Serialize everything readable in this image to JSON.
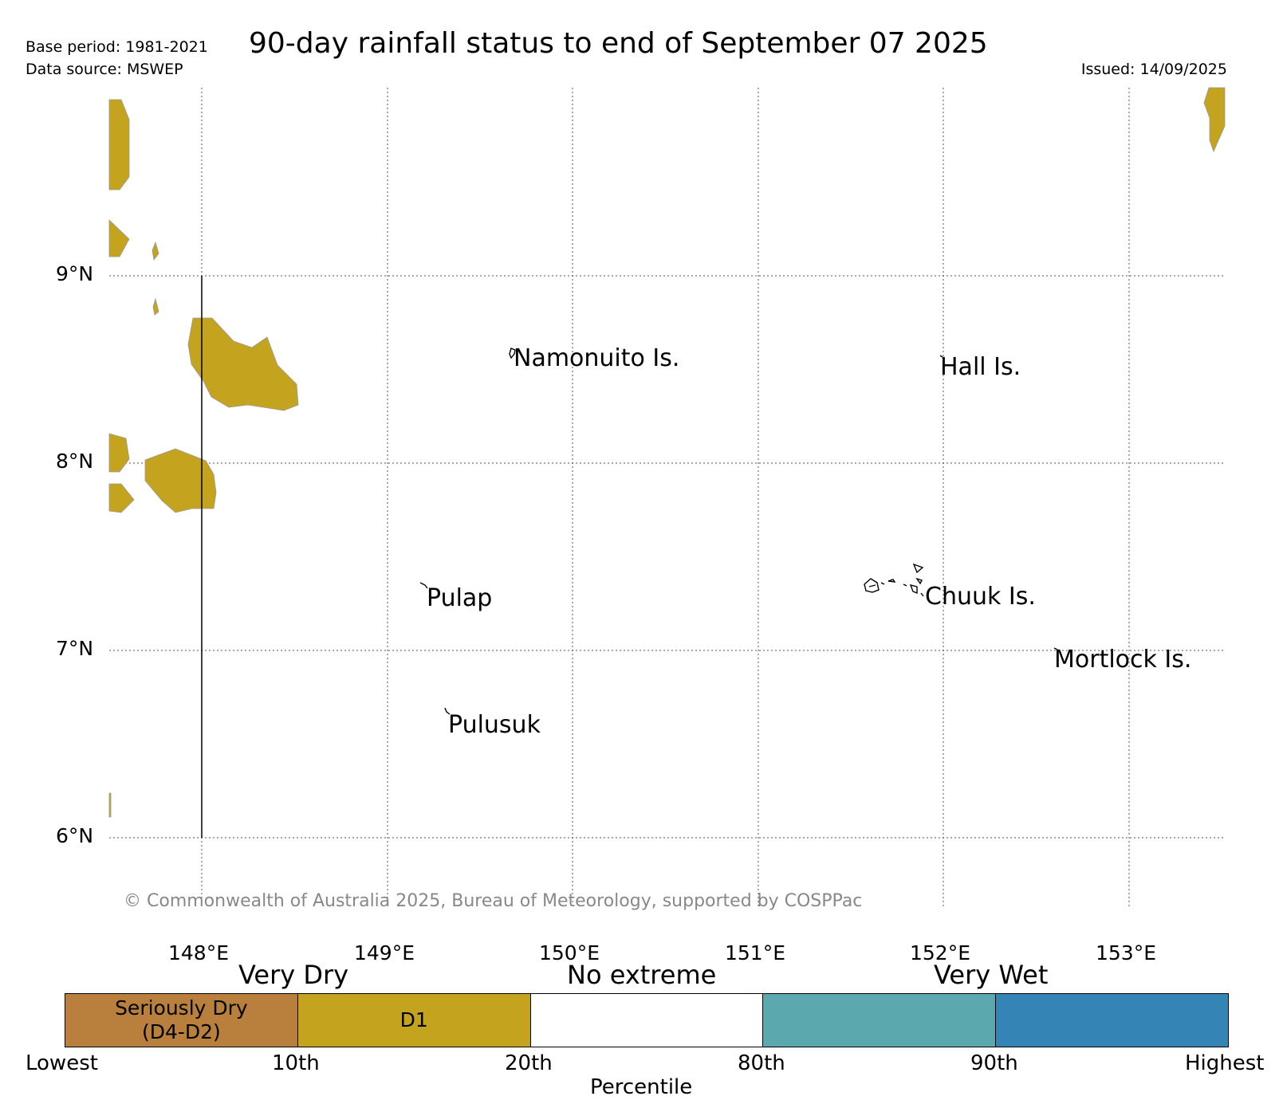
{
  "header": {
    "base_period": "Base period: 1981-2021",
    "data_source": "Data source: MSWEP",
    "title": "90-day rainfall status to end of September 07 2025",
    "issued": "Issued: 14/09/2025"
  },
  "map": {
    "lon_ticks": [
      "148°E",
      "149°E",
      "150°E",
      "151°E",
      "152°E",
      "153°E"
    ],
    "lat_ticks": [
      "9°N",
      "8°N",
      "7°N",
      "6°N"
    ],
    "places": {
      "namonuito": "Namonuito Is.",
      "hall": "Hall Is.",
      "pulap": "Pulap",
      "chuuk": "Chuuk Is.",
      "mortlock": "Mortlock Is.",
      "pulusuk": "Pulusuk"
    },
    "copyright": "© Commonwealth of Australia 2025, Bureau of Meteorology, supported by COSPPac",
    "colors": {
      "d1": "#c4a41e",
      "gridline": "#555555"
    }
  },
  "legend": {
    "groups": {
      "very_dry": "Very Dry",
      "no_extreme": "No extreme",
      "very_wet": "Very Wet"
    },
    "boxes": {
      "seriously_dry_line1": "Seriously Dry",
      "seriously_dry_line2": "(D4-D2)",
      "d1": "D1"
    },
    "colors": {
      "seriously_dry": "#b8803c",
      "d1": "#c4a41e",
      "no_extreme": "#ffffff",
      "wet": "#5ba8ae",
      "very_wet": "#3584b6"
    },
    "percentiles": [
      "Lowest",
      "10th",
      "20th",
      "80th",
      "90th",
      "Highest"
    ],
    "axis_label": "Percentile"
  }
}
